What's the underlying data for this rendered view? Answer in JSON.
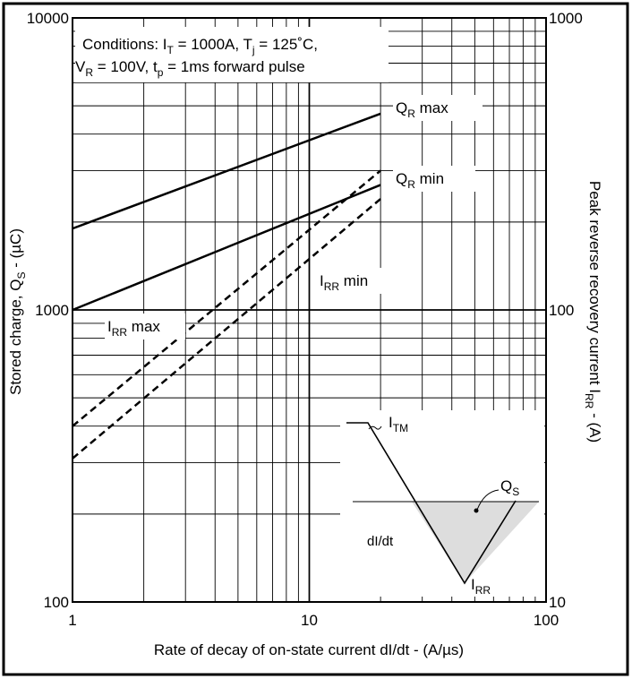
{
  "chart_data": {
    "type": "line",
    "x_scale": "log",
    "y_scale": "log",
    "xlim": [
      1,
      100
    ],
    "ylim_left": [
      100,
      10000
    ],
    "ylim_right": [
      10,
      1000
    ],
    "xticks": [
      "1",
      "10",
      "100"
    ],
    "yticks_left": [
      "100",
      "1000",
      "10000"
    ],
    "yticks_right": [
      "10",
      "100",
      "1000"
    ],
    "grid": true,
    "xlabel": "Rate of decay of on-state current dI/dt - (A/µs)",
    "ylabel_left": {
      "pre": "Stored charge, Q",
      "sub": "S",
      "post": " - (µC)"
    },
    "ylabel_right": {
      "pre": "Peak reverse recovery current I",
      "sub": "RR",
      "post": " - (A)"
    },
    "conditions": {
      "line1": {
        "a": "Conditions: I",
        "a_sub": "T",
        "b": " = 1000A, T",
        "b_sub": "j",
        "c": " = 125˚C,"
      },
      "line2": {
        "a": "V",
        "a_sub": "R",
        "b": " = 100V, t",
        "b_sub": "p",
        "c": " = 1ms forward pulse"
      }
    },
    "series": [
      {
        "name": "QR max",
        "label_main": "Q",
        "label_sub": "R",
        "label_post": " max",
        "axis": "left",
        "style": "solid",
        "x": [
          1,
          20
        ],
        "y": [
          1900,
          4700
        ]
      },
      {
        "name": "QR min",
        "label_main": "Q",
        "label_sub": "R",
        "label_post": " min",
        "axis": "left",
        "style": "solid",
        "x": [
          1,
          20
        ],
        "y": [
          1000,
          2680
        ]
      },
      {
        "name": "IRR max",
        "label_main": "I",
        "label_sub": "RR",
        "label_post": " max",
        "axis": "right",
        "style": "dashed",
        "x": [
          1,
          20
        ],
        "y": [
          40,
          300
        ]
      },
      {
        "name": "IRR min",
        "label_main": "I",
        "label_sub": "RR",
        "label_post": " min",
        "axis": "right",
        "style": "dashed",
        "x": [
          1,
          20
        ],
        "y": [
          31,
          240
        ]
      }
    ]
  },
  "inset": {
    "i_main": "I",
    "i_sub": "TM",
    "qs_main": "Q",
    "qs_sub": "S",
    "didt": "dI/dt",
    "irr_main": "I",
    "irr_sub": "RR"
  }
}
